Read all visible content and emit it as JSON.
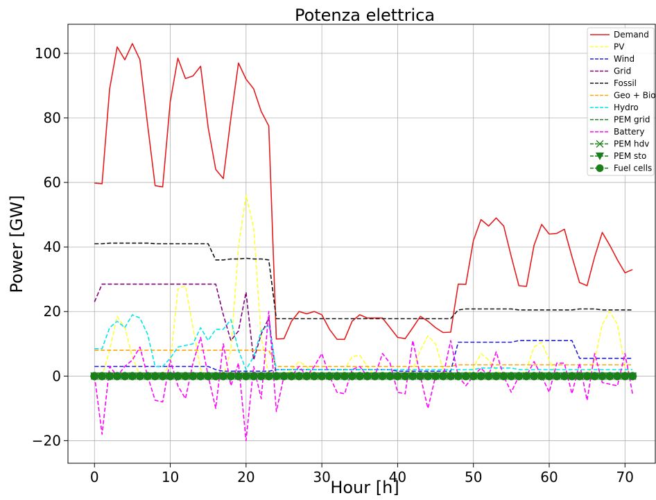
{
  "chart_data": {
    "type": "line",
    "title": "Potenza elettrica",
    "xlabel": "Hour [h]",
    "ylabel": "Power [GW]",
    "xlim": [
      -3.5,
      74
    ],
    "ylim": [
      -27,
      109
    ],
    "xticks": [
      0,
      10,
      20,
      30,
      40,
      50,
      60,
      70
    ],
    "yticks": [
      -20,
      0,
      20,
      40,
      60,
      80,
      100
    ],
    "xtick_labels": [
      "0",
      "10",
      "20",
      "30",
      "40",
      "50",
      "60",
      "70"
    ],
    "ytick_labels": [
      "−20",
      "0",
      "20",
      "40",
      "60",
      "80",
      "100"
    ],
    "grid": true,
    "legend_position": "top-right",
    "series": [
      {
        "name": "Demand",
        "color": "#e41a1c",
        "style": "solid",
        "marker": "none",
        "values": [
          59.8,
          59.6,
          89,
          102,
          98,
          103,
          98,
          78,
          59,
          58.6,
          85,
          98.5,
          92.2,
          93,
          96,
          77,
          64,
          61.2,
          80,
          97,
          92,
          89,
          82,
          77.5,
          11.5,
          11.6,
          17,
          20,
          19.3,
          20,
          19,
          14.5,
          11.4,
          11.4,
          17,
          19,
          18,
          18,
          18,
          15,
          12,
          11.6,
          15,
          18.5,
          17,
          15,
          13.5,
          13.6,
          28.5,
          28.4,
          42,
          48.5,
          46.5,
          49,
          46.5,
          37,
          28,
          27.8,
          40.5,
          47,
          44,
          44.2,
          45.5,
          37,
          29,
          28,
          37,
          44.5,
          40.5,
          36,
          32,
          33
        ]
      },
      {
        "name": "PV",
        "color": "#ffff33",
        "style": "dashed",
        "marker": "none",
        "values": [
          0,
          0,
          8,
          18.5,
          15,
          6,
          0,
          0,
          0,
          0,
          4,
          27,
          28,
          15,
          2,
          0,
          0,
          0,
          8,
          40,
          56,
          46,
          12,
          0,
          0,
          0,
          2,
          4.5,
          3,
          0,
          0,
          0,
          0,
          2,
          6,
          6.5,
          3,
          0,
          0,
          0,
          0,
          0,
          2,
          8,
          12.5,
          10,
          2,
          0,
          0,
          0,
          2.5,
          7,
          5,
          2,
          0,
          0,
          0,
          2,
          9,
          10.5,
          5,
          0,
          0,
          0,
          0,
          0,
          5,
          16,
          20,
          16,
          3,
          0
        ]
      },
      {
        "name": "Wind",
        "color": "#1f1fd6",
        "style": "dashed",
        "marker": "none",
        "values": [
          3,
          3,
          3,
          3,
          3,
          3,
          3,
          3,
          3,
          3,
          3,
          3,
          3,
          3,
          3,
          3,
          2,
          1.5,
          1.5,
          1.5,
          1.5,
          1.5,
          1.5,
          1.5,
          2,
          2,
          2,
          2,
          2,
          2,
          2,
          2,
          2,
          2,
          2,
          2,
          2,
          2,
          2,
          2,
          1.5,
          1.5,
          1.5,
          1.5,
          1.5,
          1.5,
          1.5,
          1.5,
          10.5,
          10.5,
          10.5,
          10.5,
          10.5,
          10.5,
          10.5,
          10.5,
          11,
          11,
          11,
          11,
          11,
          11,
          11,
          11,
          5.5,
          5.5,
          5.5,
          5.5,
          5.5,
          5.5,
          5.5,
          5.5
        ]
      },
      {
        "name": "Grid",
        "color": "#800080",
        "style": "dashed",
        "marker": "none",
        "values": [
          23,
          28.5,
          28.5,
          28.5,
          28.5,
          28.5,
          28.5,
          28.5,
          28.5,
          28.5,
          28.5,
          28.5,
          28.5,
          28.5,
          28.5,
          28.5,
          28.5,
          19,
          11,
          14,
          26,
          5,
          13,
          18,
          0,
          0,
          0,
          0,
          0,
          0,
          0,
          0,
          0,
          0,
          0,
          0,
          0,
          0,
          0,
          0,
          0,
          0,
          0,
          0,
          0,
          0,
          0,
          0,
          0,
          0,
          0,
          0,
          0,
          0,
          0,
          0,
          0,
          0,
          0,
          0,
          0,
          0,
          0,
          0,
          0,
          0,
          0,
          0,
          0,
          0,
          0,
          0
        ]
      },
      {
        "name": "Fossil",
        "color": "#111111",
        "style": "dashed",
        "marker": "none",
        "values": [
          41,
          41,
          41.2,
          41.2,
          41.2,
          41.2,
          41.2,
          41.2,
          41,
          41,
          41,
          41,
          41,
          41,
          41,
          41,
          36,
          36,
          36.3,
          36.3,
          36.5,
          36.3,
          36.3,
          36,
          17.8,
          17.8,
          17.8,
          17.8,
          17.8,
          17.8,
          17.8,
          17.8,
          17.8,
          17.8,
          17.8,
          17.8,
          17.8,
          17.8,
          17.8,
          17.8,
          17.8,
          17.8,
          17.8,
          17.8,
          17.8,
          17.8,
          17.8,
          17.8,
          20.5,
          20.8,
          20.8,
          20.8,
          20.8,
          20.8,
          20.8,
          20.8,
          20.5,
          20.5,
          20.5,
          20.5,
          20.5,
          20.5,
          20.5,
          20.5,
          20.8,
          20.8,
          20.8,
          20.5,
          20.5,
          20.5,
          20.5,
          20.5
        ]
      },
      {
        "name": "Geo + Bio",
        "color": "#ffa500",
        "style": "dashed",
        "marker": "none",
        "values": [
          8,
          8,
          8,
          8,
          8,
          8,
          8,
          8,
          8,
          8,
          8,
          8,
          8,
          8,
          8,
          8,
          8,
          8,
          8,
          8,
          8,
          8,
          8,
          8,
          3,
          3,
          3,
          3,
          3,
          3,
          3,
          3,
          3,
          3,
          3,
          3,
          3,
          3,
          3,
          3,
          3,
          3,
          3,
          3,
          3,
          3,
          3,
          3,
          3.5,
          3.5,
          3.5,
          3.5,
          3.5,
          3.5,
          3.5,
          3.5,
          3.5,
          3.5,
          3.5,
          3.5,
          3.5,
          3.5,
          3.5,
          3.5,
          3.5,
          3.5,
          3.5,
          3.5,
          3.5,
          3.5,
          3.5,
          3.5
        ]
      },
      {
        "name": "Hydro",
        "color": "#00e5ee",
        "style": "dashed",
        "marker": "none",
        "values": [
          8.5,
          8.5,
          15,
          17,
          15,
          19,
          18,
          13,
          3,
          3,
          5.5,
          9,
          9.5,
          10,
          15,
          11,
          14.5,
          14.5,
          17.5,
          8,
          2,
          6,
          14,
          16,
          2,
          2,
          2,
          2,
          2,
          2,
          2,
          2,
          2,
          2,
          2,
          2,
          2,
          2,
          2,
          2,
          2,
          2,
          2,
          2,
          2,
          2,
          2,
          2,
          2,
          2,
          2,
          2.5,
          2.5,
          2.5,
          2.5,
          2.5,
          2,
          2,
          2,
          2,
          2,
          2,
          2,
          2,
          2,
          2,
          2,
          2,
          2,
          2,
          2,
          2
        ]
      },
      {
        "name": "PEM grid",
        "color": "#1a7f1a",
        "style": "dashed",
        "marker": "none",
        "values": [
          0,
          0,
          0,
          0,
          0,
          0,
          0,
          0,
          0,
          0,
          0,
          0,
          0,
          0,
          0,
          0,
          0,
          0,
          0,
          0,
          0,
          0,
          0,
          0,
          0,
          0,
          0,
          0,
          0,
          0,
          0,
          0,
          0,
          0,
          0,
          0,
          0,
          0,
          0,
          0,
          0,
          0,
          0,
          0,
          0,
          0,
          0,
          0,
          0,
          0,
          0,
          0,
          0,
          0,
          0,
          0,
          0,
          0,
          0,
          0,
          0,
          0,
          0,
          0,
          0,
          0,
          0,
          0,
          0,
          0,
          0,
          0
        ]
      },
      {
        "name": "Battery",
        "color": "#ff00ff",
        "style": "dashed",
        "marker": "none",
        "values": [
          0,
          -18,
          3,
          0,
          3,
          5,
          9,
          0,
          -7.5,
          -8,
          5,
          -3,
          -7,
          4,
          12,
          0,
          -10,
          10,
          -3,
          4,
          -20,
          3,
          -7,
          20,
          -11,
          0,
          0,
          3,
          0,
          3,
          7,
          0,
          -5,
          -5.5,
          2,
          3,
          0,
          0,
          7,
          4,
          -5,
          -5.5,
          11,
          0,
          -10,
          0,
          0,
          11,
          0,
          -3,
          0,
          2.5,
          0,
          7.5,
          0,
          -5,
          0,
          0,
          4.5,
          0,
          -5,
          4,
          4,
          -5.5,
          4,
          -7.5,
          7,
          -2,
          -2.5,
          -3,
          7,
          -5.5
        ]
      },
      {
        "name": "PEM hdv",
        "color": "#1a7f1a",
        "style": "dashed",
        "marker": "x",
        "values": [
          0,
          0,
          0,
          0,
          0,
          0,
          0,
          0,
          0,
          0,
          0,
          0,
          0,
          0,
          0,
          0,
          0,
          0,
          0,
          0,
          0,
          0,
          0,
          0,
          0,
          0,
          0,
          0,
          0,
          0,
          0,
          0,
          0,
          0,
          0,
          0,
          0,
          0,
          0,
          0,
          0,
          0,
          0,
          0,
          0,
          0,
          0,
          0,
          0,
          0,
          0,
          0,
          0,
          0,
          0,
          0,
          0,
          0,
          0,
          0,
          0,
          0,
          0,
          0,
          0,
          0,
          0,
          0,
          0,
          0,
          0,
          0
        ]
      },
      {
        "name": "PEM sto",
        "color": "#1a7f1a",
        "style": "dashed",
        "marker": "triangle-down",
        "values": [
          0,
          0,
          0,
          0,
          0,
          0,
          0,
          0,
          0,
          0,
          0,
          0,
          0,
          0,
          0,
          0,
          0,
          0,
          0,
          0,
          0,
          0,
          0,
          0,
          0,
          0,
          0,
          0,
          0,
          0,
          0,
          0,
          0,
          0,
          0,
          0,
          0,
          0,
          0,
          0,
          0,
          0,
          0,
          0,
          0,
          0,
          0,
          0,
          0,
          0,
          0,
          0,
          0,
          0,
          0,
          0,
          0,
          0,
          0,
          0,
          0,
          0,
          0,
          0,
          0,
          0,
          0,
          0,
          0,
          0,
          0,
          0
        ]
      },
      {
        "name": "Fuel cells",
        "color": "#1a7f1a",
        "style": "dashed",
        "marker": "circle",
        "values": [
          0,
          0,
          0,
          0,
          0,
          0,
          0,
          0,
          0,
          0,
          0,
          0,
          0,
          0,
          0,
          0,
          0,
          0,
          0,
          0,
          0,
          0,
          0,
          0,
          0,
          0,
          0,
          0,
          0,
          0,
          0,
          0,
          0,
          0,
          0,
          0,
          0,
          0,
          0,
          0,
          0,
          0,
          0,
          0,
          0,
          0,
          0,
          0,
          0,
          0,
          0,
          0,
          0,
          0,
          0,
          0,
          0,
          0,
          0,
          0,
          0,
          0,
          0,
          0,
          0,
          0,
          0,
          0,
          0,
          0,
          0,
          0
        ]
      }
    ]
  }
}
